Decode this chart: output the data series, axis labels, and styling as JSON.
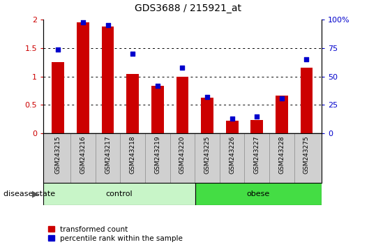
{
  "title": "GDS3688 / 215921_at",
  "categories": [
    "GSM243215",
    "GSM243216",
    "GSM243217",
    "GSM243218",
    "GSM243219",
    "GSM243220",
    "GSM243225",
    "GSM243226",
    "GSM243227",
    "GSM243228",
    "GSM243275"
  ],
  "red_values": [
    1.25,
    1.95,
    1.88,
    1.04,
    0.84,
    1.0,
    0.63,
    0.22,
    0.23,
    0.67,
    1.16
  ],
  "blue_pct": [
    74,
    98,
    95,
    70,
    42,
    58,
    32,
    13,
    15,
    31,
    65
  ],
  "ylim_left": [
    0,
    2
  ],
  "ylim_right": [
    0,
    100
  ],
  "yticks_left": [
    0,
    0.5,
    1.0,
    1.5,
    2.0
  ],
  "yticks_right": [
    0,
    25,
    50,
    75,
    100
  ],
  "ytick_labels_left": [
    "0",
    "0.5",
    "1",
    "1.5",
    "2"
  ],
  "ytick_labels_right": [
    "0",
    "25",
    "50",
    "75",
    "100%"
  ],
  "group_label": "disease state",
  "bar_color": "#cc0000",
  "dot_color": "#0000cc",
  "legend_red": "transformed count",
  "legend_blue": "percentile rank within the sample",
  "ctrl_color": "#c8f5c8",
  "obese_color": "#44dd44",
  "xtick_bg": "#d0d0d0",
  "bar_width": 0.5,
  "dot_size": 20,
  "n_control": 6,
  "n_obese": 5
}
